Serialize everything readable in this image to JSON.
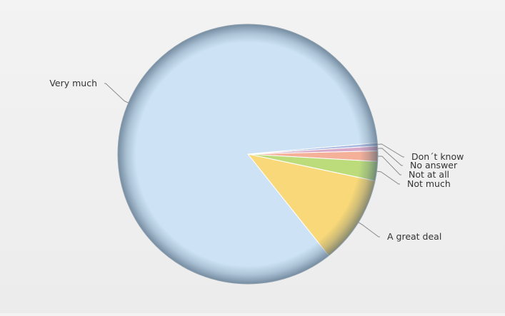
{
  "chart_data": {
    "type": "pie",
    "title": "",
    "slices": [
      {
        "label": "Very much",
        "value": 84.3,
        "color": "#cde3f5"
      },
      {
        "label": "A great deal",
        "value": 11.0,
        "color": "#f8d878"
      },
      {
        "label": "Not much",
        "value": 2.4,
        "color": "#bcdc7c"
      },
      {
        "label": "Not at all",
        "value": 1.3,
        "color": "#f4b098"
      },
      {
        "label": "No answer",
        "value": 0.6,
        "color": "#d8a8c8"
      },
      {
        "label": "Don´t know",
        "value": 0.4,
        "color": "#a8b8e0"
      }
    ],
    "legend": "none",
    "data_labels": "outside with leader lines"
  }
}
